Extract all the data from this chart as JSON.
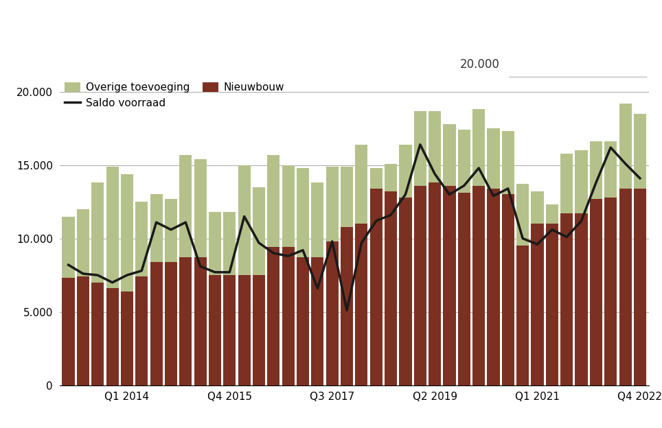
{
  "legend_labels": [
    "Overige toevoeging",
    "Saldo voorraad",
    "Nieuwbouw"
  ],
  "color_nieuwbouw": "#7B3022",
  "color_overige": "#B5C18A",
  "color_line": "#1a1a1a",
  "ylim": [
    0,
    21000
  ],
  "yticks": [
    0,
    5000,
    10000,
    15000,
    20000
  ],
  "ytick_labels": [
    "0",
    "5.000",
    "10.000",
    "15.000",
    "20.000"
  ],
  "xtick_labels": [
    "Q1 2014",
    "Q4 2015",
    "Q3 2017",
    "Q2 2019",
    "Q1 2021",
    "Q4 2022"
  ],
  "xtick_positions": [
    4,
    11,
    18,
    25,
    32,
    39
  ],
  "annotation_20000": "20.000",
  "nieuwbouw": [
    7300,
    7400,
    7000,
    6600,
    6400,
    7400,
    8400,
    8400,
    8700,
    8700,
    7500,
    7500,
    7500,
    7500,
    9400,
    9400,
    8700,
    8700,
    9800,
    10800,
    11000,
    13400,
    13200,
    12800,
    13600,
    13800,
    13600,
    13100,
    13600,
    13400,
    13000,
    9500,
    11000,
    11000,
    11700,
    11700,
    12700,
    12800,
    13400,
    13400
  ],
  "total": [
    11500,
    12000,
    13800,
    14900,
    14400,
    12500,
    13000,
    12700,
    15700,
    15400,
    11800,
    11800,
    15000,
    13500,
    15700,
    15000,
    14800,
    13800,
    14900,
    14900,
    16400,
    14800,
    15100,
    16400,
    18700,
    18700,
    17800,
    17400,
    18800,
    17500,
    17300,
    13700,
    13200,
    12300,
    15800,
    16000,
    16600,
    16600,
    19200,
    18500
  ],
  "saldo": [
    8200,
    7600,
    7500,
    7000,
    7500,
    7800,
    11100,
    10600,
    11100,
    8100,
    7700,
    7700,
    11500,
    9700,
    9000,
    8800,
    9200,
    6600,
    9800,
    5100,
    9700,
    11200,
    11600,
    13000,
    16400,
    14400,
    13000,
    13600,
    14800,
    12900,
    13400,
    10000,
    9600,
    10600,
    10100,
    11200,
    13800,
    16200,
    15100,
    14100
  ],
  "background_color": "#ffffff",
  "grid_color": "#b0b0b0",
  "bar_width": 0.85
}
